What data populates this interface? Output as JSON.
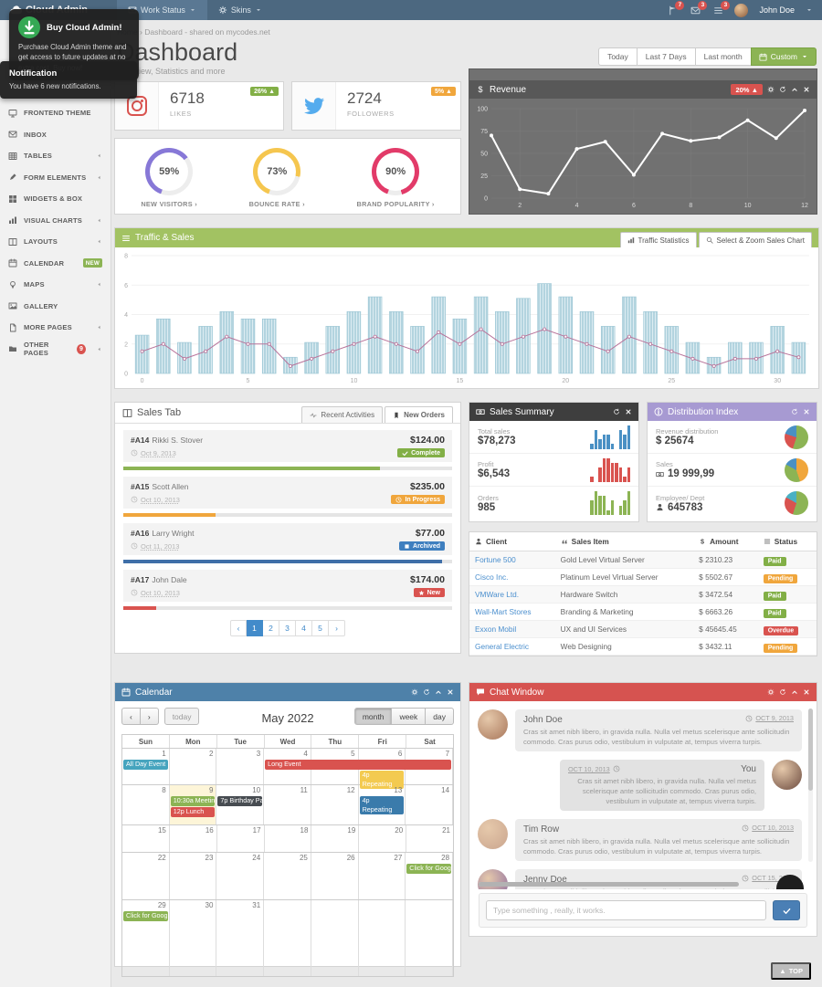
{
  "navbar": {
    "brand": "Cloud Admin",
    "items": [
      "Work Status",
      "Skins"
    ],
    "alerts": [
      {
        "icon": "flag",
        "count": "7"
      },
      {
        "icon": "envelope",
        "count": "3"
      },
      {
        "icon": "lines",
        "count": "3"
      }
    ],
    "user": "John Doe"
  },
  "tooltips": {
    "buy": {
      "title": "Buy Cloud Admin!",
      "body": "Purchase Cloud Admin theme and get access to future updates at no extra cost. Buy now!"
    },
    "notification": {
      "title": "Notification",
      "body": "You have 6 new notifications."
    }
  },
  "sidebar": {
    "items": [
      {
        "label": "FRONTEND THEME",
        "icon": "monitor",
        "caret": false
      },
      {
        "label": "INBOX",
        "icon": "envelope",
        "caret": false
      },
      {
        "label": "TABLES",
        "icon": "table",
        "caret": true
      },
      {
        "label": "FORM ELEMENTS",
        "icon": "pencil",
        "caret": true
      },
      {
        "label": "WIDGETS & BOX",
        "icon": "grid",
        "caret": false
      },
      {
        "label": "VISUAL CHARTS",
        "icon": "chart",
        "caret": true
      },
      {
        "label": "LAYOUTS",
        "icon": "columns",
        "caret": true
      },
      {
        "label": "CALENDAR",
        "icon": "calendar",
        "badge": "NEW",
        "caret": false
      },
      {
        "label": "MAPS",
        "icon": "marker",
        "caret": true
      },
      {
        "label": "GALLERY",
        "icon": "image",
        "caret": false
      },
      {
        "label": "MORE PAGES",
        "icon": "file",
        "caret": true
      },
      {
        "label": "OTHER PAGES",
        "icon": "folder",
        "badge_count": "9",
        "caret": true
      }
    ]
  },
  "breadcrumb": {
    "home": "Home",
    "sep": "›",
    "current": "Dashboard - shared on mycodes.net"
  },
  "page": {
    "title": "Dashboard",
    "subtitle": "Overview, Statistics and more",
    "range_buttons": [
      "Today",
      "Last 7 Days",
      "Last month"
    ],
    "custom_button": "Custom"
  },
  "stats": [
    {
      "icon": "instagram",
      "value": "6718",
      "label": "LIKES",
      "badge": "26% ▲",
      "badge_color": "#82af46"
    },
    {
      "icon": "twitter",
      "value": "2724",
      "label": "FOLLOWERS",
      "badge": "5% ▲",
      "badge_color": "#f0a63c"
    }
  ],
  "gauges": [
    {
      "pct": 59,
      "label": "NEW VISITORS ›",
      "color": "#8778d7"
    },
    {
      "pct": 73,
      "label": "BOUNCE RATE ›",
      "color": "#f5c64f"
    },
    {
      "pct": 90,
      "label": "BRAND POPULARITY ›",
      "color": "#e23b69"
    }
  ],
  "revenue": {
    "title": "Revenue",
    "badge": "20% ▲",
    "head_icons": [
      "gear",
      "refresh",
      "chevron-up",
      "close"
    ]
  },
  "traffic": {
    "title": "Traffic & Sales",
    "tabs": [
      "Traffic Statistics",
      "Select & Zoom Sales Chart"
    ]
  },
  "sales_tab": {
    "title": "Sales Tab",
    "tabs": [
      "Recent Activities",
      "New Orders"
    ],
    "orders": [
      {
        "id": "#A14",
        "name": "Rikki S. Stover",
        "date": "Oct 9, 2013",
        "amount": "$124.00",
        "status": "Complete",
        "status_icon": "check",
        "status_color": "#82af46",
        "progress": 78,
        "bar_color": "#8cb454"
      },
      {
        "id": "#A15",
        "name": "Scott Allen",
        "date": "Oct 10, 2013",
        "amount": "$235.00",
        "status": "In Progress",
        "status_icon": "clock",
        "status_color": "#f0a63c",
        "progress": 28,
        "bar_color": "#f0a63c"
      },
      {
        "id": "#A16",
        "name": "Larry Wright",
        "date": "Oct 11, 2013",
        "amount": "$77.00",
        "status": "Archived",
        "status_icon": "square",
        "status_color": "#3f7fbf",
        "progress": 97,
        "bar_color": "#3f6fa8"
      },
      {
        "id": "#A17",
        "name": "John Dale",
        "date": "Oct 10, 2013",
        "amount": "$174.00",
        "status": "New",
        "status_icon": "star",
        "status_color": "#d9534f",
        "progress": 10,
        "bar_color": "#d9534f"
      }
    ],
    "pagination": [
      "‹",
      "1",
      "2",
      "3",
      "4",
      "5",
      "›"
    ],
    "active_page": "1"
  },
  "sales_summary": {
    "title": "Sales Summary",
    "head_icons": [
      "refresh",
      "close"
    ],
    "rows": [
      {
        "label": "Total sales",
        "value": "$78,273"
      },
      {
        "label": "Profit",
        "value": "$6,543"
      },
      {
        "label": "Orders",
        "value": "985"
      }
    ]
  },
  "distribution": {
    "title": "Distribution Index",
    "head_icons": [
      "refresh",
      "close"
    ],
    "rows": [
      {
        "label": "Revenue distribution",
        "value": "$ 25674",
        "icon": ""
      },
      {
        "label": "Sales",
        "value": "19 999,99",
        "icon": "money"
      },
      {
        "label": "Employee/ Dept",
        "value": "645783",
        "icon": "person"
      }
    ]
  },
  "client_table": {
    "headers": [
      {
        "label": "Client",
        "icon": "person"
      },
      {
        "label": "Sales Item",
        "icon": "quote"
      },
      {
        "label": "Amount",
        "icon": "dollar"
      },
      {
        "label": "Status",
        "icon": "lines"
      }
    ],
    "rows": [
      {
        "client": "Fortune 500",
        "item": "Gold Level Virtual Server",
        "amount": "$ 2310.23",
        "status": "Paid",
        "status_color": "#82af46"
      },
      {
        "client": "Cisco Inc.",
        "item": "Platinum Level Virtual Server",
        "amount": "$ 5502.67",
        "status": "Pending",
        "status_color": "#f0a63c"
      },
      {
        "client": "VMWare Ltd.",
        "item": "Hardware Switch",
        "amount": "$ 3472.54",
        "status": "Paid",
        "status_color": "#82af46"
      },
      {
        "client": "Wall-Mart Stores",
        "item": "Branding & Marketing",
        "amount": "$ 6663.26",
        "status": "Paid",
        "status_color": "#82af46"
      },
      {
        "client": "Exxon Mobil",
        "item": "UX and UI Services",
        "amount": "$ 45645.45",
        "status": "Overdue",
        "status_color": "#d9534f"
      },
      {
        "client": "General Electric",
        "item": "Web Designing",
        "amount": "$ 3432.11",
        "status": "Pending",
        "status_color": "#f0a63c"
      }
    ]
  },
  "calendar": {
    "title": "Calendar",
    "head_icons": [
      "gear",
      "refresh",
      "chevron-up",
      "close"
    ],
    "month_title": "May 2022",
    "nav": {
      "prev": "‹",
      "next": "›",
      "today": "today"
    },
    "views": [
      "month",
      "week",
      "day"
    ],
    "active_view": "month",
    "dow": [
      "Sun",
      "Mon",
      "Tue",
      "Wed",
      "Thu",
      "Fri",
      "Sat"
    ],
    "weeks": [
      {
        "days": [
          "1",
          "2",
          "3",
          "4",
          "5",
          "6",
          "7"
        ],
        "today": -1,
        "events": [
          {
            "label": "All Day Event",
            "col": 0,
            "span": 1,
            "row": 0,
            "color": "#46a4be",
            "lines": 1
          },
          {
            "label": "Long Event",
            "col": 3,
            "span": 4,
            "row": 0,
            "color": "#d9534f",
            "lines": 1
          },
          {
            "label": "4p Repeating Event",
            "col": 5,
            "span": 1,
            "row": 1,
            "color": "#f3ca50",
            "lines": 2
          }
        ]
      },
      {
        "days": [
          "8",
          "9",
          "10",
          "11",
          "12",
          "13",
          "14"
        ],
        "today": 1,
        "events": [
          {
            "label": "10:30a Meeting",
            "col": 1,
            "span": 1,
            "row": 0,
            "color": "#8cb454",
            "lines": 1
          },
          {
            "label": "12p Lunch",
            "col": 1,
            "span": 1,
            "row": 1,
            "color": "#d9534f",
            "lines": 1
          },
          {
            "label": "7p Birthday Party",
            "col": 2,
            "span": 1,
            "row": 0,
            "color": "#474c51",
            "lines": 1
          },
          {
            "label": "4p Repeating Event",
            "col": 5,
            "span": 1,
            "row": 0,
            "color": "#3a7bab",
            "lines": 2
          }
        ]
      },
      {
        "days": [
          "15",
          "16",
          "17",
          "18",
          "19",
          "20",
          "21"
        ],
        "today": -1,
        "events": []
      },
      {
        "days": [
          "22",
          "23",
          "24",
          "25",
          "26",
          "27",
          "28"
        ],
        "today": -1,
        "events": [
          {
            "label": "Click for Google",
            "col": 6,
            "span": 1,
            "row": 0,
            "color": "#8cb454",
            "lines": 1
          }
        ]
      },
      {
        "days": [
          "29",
          "30",
          "31",
          "",
          "",
          "",
          ""
        ],
        "today": -1,
        "events": [
          {
            "label": "Click for Google",
            "col": 0,
            "span": 1,
            "row": 0,
            "color": "#8cb454",
            "lines": 1
          }
        ]
      }
    ]
  },
  "chat": {
    "title": "Chat Window",
    "head_icons": [
      "gear",
      "refresh",
      "chevron-up",
      "close"
    ],
    "messages": [
      {
        "name": "John Doe",
        "side": "left",
        "date": "OCT 9, 2013",
        "avatar": "#a8765a",
        "text": "Cras sit amet nibh libero, in gravida nulla. Nulla vel metus scelerisque ante sollicitudin commodo. Cras purus odio, vestibulum in vulputate at, tempus viverra turpis."
      },
      {
        "name": "You",
        "side": "right",
        "date": "OCT 10, 2013",
        "avatar": "#6b4a3e",
        "text": "Cras sit amet nibh libero, in gravida nulla. Nulla vel metus scelerisque ante sollicitudin commodo. Cras purus odio, vestibulum in vulputate at, tempus viverra turpis."
      },
      {
        "name": "Tim Row",
        "side": "left",
        "date": "OCT 10, 2013",
        "avatar": "#caa58e",
        "text": "Cras sit amet nibh libero, in gravida nulla. Nulla vel metus scelerisque ante sollicitudin commodo. Cras purus odio, vestibulum in vulputate at, tempus viverra turpis."
      },
      {
        "name": "Jenny Doe",
        "side": "left",
        "date": "OCT 15, 2013",
        "avatar": "#8a6aa0",
        "text": "Cras sit amet nibh libero, in gravida nulla. Nulla vel metus scelerisque ante sollicitudin commodo. Cras purus odio, vestibulum in vulputate at, tempus viverra turpis."
      }
    ],
    "input_placeholder": "Type something , really, it works."
  },
  "misc": {
    "top_label": "TOP",
    "top_arrow": "▲"
  },
  "chart_data": [
    {
      "type": "line",
      "title": "Revenue",
      "x": [
        1,
        2,
        3,
        4,
        5,
        6,
        7,
        8,
        9,
        10,
        11,
        12
      ],
      "values": [
        70,
        10,
        5,
        55,
        63,
        26,
        72,
        64,
        68,
        87,
        67,
        98
      ],
      "ylim": [
        0,
        100
      ],
      "yticks": [
        0,
        25,
        50,
        75,
        100
      ],
      "xticks": [
        2,
        4,
        6,
        8,
        10,
        12
      ],
      "line_color": "#ffffff",
      "bg": "#717171",
      "grid": true
    },
    {
      "type": "bar",
      "title": "Traffic & Sales",
      "x": [
        0,
        1,
        2,
        3,
        4,
        5,
        6,
        7,
        8,
        9,
        10,
        11,
        12,
        13,
        14,
        15,
        16,
        17,
        18,
        19,
        20,
        21,
        22,
        23,
        24,
        25,
        26,
        27,
        28,
        29,
        30,
        31
      ],
      "series": [
        {
          "name": "traffic-bars",
          "values": [
            2.6,
            3.7,
            2.1,
            3.2,
            4.2,
            3.7,
            3.7,
            1.1,
            2.1,
            3.2,
            4.2,
            5.2,
            4.2,
            3.2,
            5.2,
            3.7,
            5.2,
            4.2,
            5.1,
            6.1,
            5.2,
            4.2,
            3.2,
            5.2,
            4.2,
            3.2,
            2.1,
            1.1,
            2.1,
            2.1,
            3.2,
            2.1
          ]
        },
        {
          "name": "sales-line",
          "values": [
            1.5,
            2,
            1,
            1.5,
            2.5,
            2,
            2,
            0.5,
            1,
            1.5,
            2,
            2.5,
            2,
            1.5,
            2.8,
            2,
            3,
            2,
            2.5,
            3,
            2.5,
            2,
            1.5,
            2.5,
            2,
            1.5,
            1,
            0.5,
            1,
            1,
            1.5,
            1.1
          ]
        }
      ],
      "ylim": [
        0,
        8
      ],
      "yticks": [
        0,
        2,
        4,
        6,
        8
      ],
      "xticks": [
        0,
        5,
        10,
        15,
        20,
        25,
        30
      ],
      "bar_color": "#b3d4df",
      "line_color": "#b8739a"
    },
    {
      "type": "bar",
      "title": "Total sales sparkline",
      "values": [
        1,
        4,
        2,
        3,
        3,
        1,
        0,
        4,
        3,
        5
      ],
      "color": "#4a90c4"
    },
    {
      "type": "bar",
      "title": "Profit sparkline",
      "values": [
        1,
        0,
        3,
        5,
        5,
        4,
        4,
        3,
        1,
        3
      ],
      "color": "#d9534f"
    },
    {
      "type": "bar",
      "title": "Orders sparkline",
      "values": [
        3,
        5,
        4,
        4,
        1,
        3,
        0,
        2,
        3,
        5
      ],
      "color": "#8cb454"
    },
    {
      "type": "pie",
      "title": "Revenue distribution",
      "slices": [
        {
          "pct": 55,
          "color": "#8cb454"
        },
        {
          "pct": 25,
          "color": "#d9534f"
        },
        {
          "pct": 20,
          "color": "#4a90c4"
        }
      ]
    },
    {
      "type": "pie",
      "title": "Sales",
      "slices": [
        {
          "pct": 45,
          "color": "#f0a63c"
        },
        {
          "pct": 38,
          "color": "#8cb454"
        },
        {
          "pct": 17,
          "color": "#4a90c4"
        }
      ]
    },
    {
      "type": "pie",
      "title": "Employee/ Dept",
      "slices": [
        {
          "pct": 55,
          "color": "#8cb454"
        },
        {
          "pct": 28,
          "color": "#d9534f"
        },
        {
          "pct": 17,
          "color": "#4ab0c4"
        }
      ]
    }
  ]
}
